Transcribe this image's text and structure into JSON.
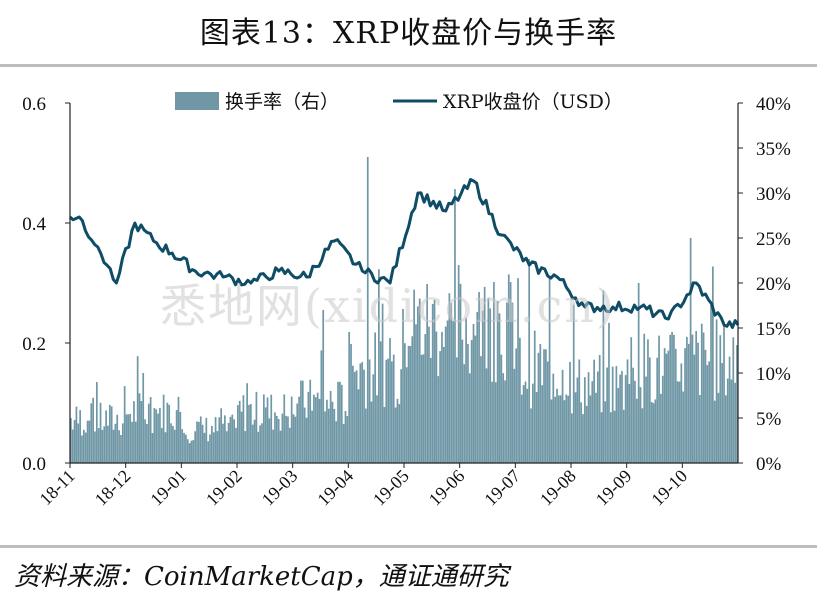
{
  "title": "图表13：XRP收盘价与换手率",
  "source": "资料来源：CoinMarketCap，通证通研究",
  "watermark": "悉地网(xidicom.cn)",
  "chart_data": {
    "type": "bar+line",
    "title": "图表13：XRP收盘价与换手率",
    "x_tick_labels": [
      "18-11",
      "18-12",
      "19-01",
      "19-02",
      "19-03",
      "19-04",
      "19-05",
      "19-06",
      "19-07",
      "19-08",
      "19-09",
      "19-10"
    ],
    "y_left": {
      "range": [
        0,
        0.6
      ],
      "ticks": [
        "0.0",
        "0.2",
        "0.4",
        "0.6"
      ]
    },
    "y_right": {
      "range": [
        0,
        40
      ],
      "ticks": [
        "0%",
        "5%",
        "10%",
        "15%",
        "20%",
        "25%",
        "30%",
        "35%",
        "40%"
      ]
    },
    "legend": {
      "position": "top",
      "entries": [
        "换手率（右）",
        "XRP收盘价（USD）"
      ]
    },
    "colors": {
      "bars": "#6f97a6",
      "line": "#0f4d66",
      "axis": "#222222"
    },
    "series": [
      {
        "name": "换手率（右）",
        "axis": "right",
        "unit": "%",
        "values_monthly_avg": [
          5,
          6,
          4,
          6,
          7,
          11,
          16,
          16,
          11,
          9,
          11,
          12
        ],
        "peaks": [
          [
            [
              "18-11"
            ],
            9
          ],
          [
            [
              "18-12"
            ],
            10
          ],
          [
            [
              "19-03"
            ],
            17
          ],
          [
            [
              "19-04"
            ],
            34
          ],
          [
            [
              "19-06"
            ],
            18
          ],
          [
            [
              "19-09"
            ],
            20
          ],
          [
            [
              "19-10"
            ],
            25
          ]
        ]
      },
      {
        "name": "XRP收盘价（USD）",
        "axis": "left",
        "unit": "USD",
        "points": [
          [
            "18-11",
            0.41
          ],
          [
            "18-11",
            0.36
          ],
          [
            "18-11",
            0.3
          ],
          [
            "18-12",
            0.4
          ],
          [
            "18-12",
            0.37
          ],
          [
            "18-12",
            0.35
          ],
          [
            "19-01",
            0.32
          ],
          [
            "19-01",
            0.31
          ],
          [
            "19-02",
            0.3
          ],
          [
            "19-02",
            0.32
          ],
          [
            "19-03",
            0.31
          ],
          [
            "19-03",
            0.37
          ],
          [
            "19-04",
            0.32
          ],
          [
            "19-04",
            0.3
          ],
          [
            "19-05",
            0.45
          ],
          [
            "19-05",
            0.42
          ],
          [
            "19-06",
            0.47
          ],
          [
            "19-06",
            0.38
          ],
          [
            "19-07",
            0.33
          ],
          [
            "19-07",
            0.31
          ],
          [
            "19-08",
            0.26
          ],
          [
            "19-08",
            0.26
          ],
          [
            "19-09",
            0.26
          ],
          [
            "19-09",
            0.24
          ],
          [
            "19-10",
            0.3
          ],
          [
            "19-10",
            0.23
          ]
        ]
      }
    ]
  }
}
